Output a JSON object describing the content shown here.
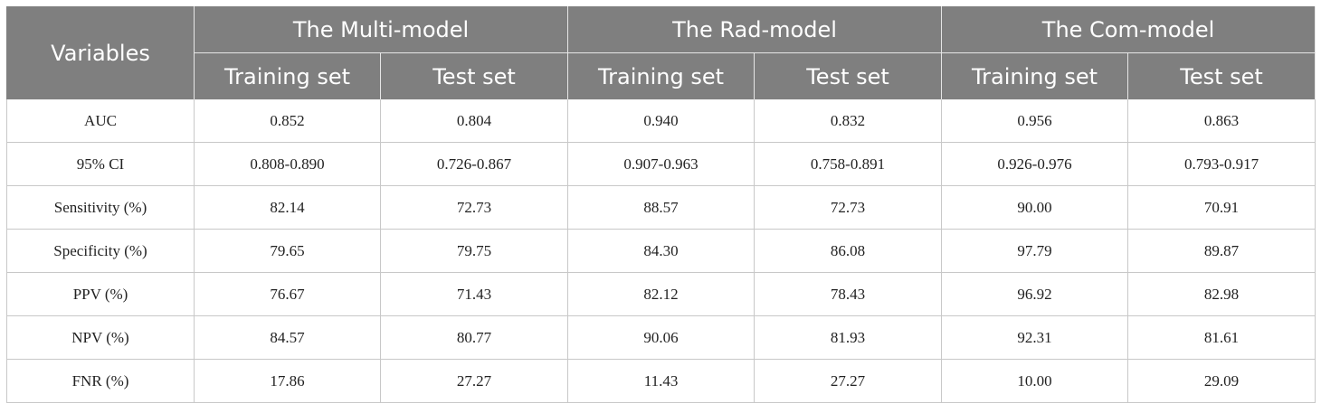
{
  "table": {
    "header": {
      "variables_label": "Variables",
      "groups": [
        {
          "label": "The Multi-model"
        },
        {
          "label": "The Rad-model"
        },
        {
          "label": "The Com-model"
        }
      ],
      "sub_columns": [
        "Training set",
        "Test set",
        "Training set",
        "Test set",
        "Training set",
        "Test set"
      ]
    },
    "rows": [
      {
        "variable": "AUC",
        "values": [
          "0.852",
          "0.804",
          "0.940",
          "0.832",
          "0.956",
          "0.863"
        ]
      },
      {
        "variable": "95% CI",
        "values": [
          "0.808-0.890",
          "0.726-0.867",
          "0.907-0.963",
          "0.758-0.891",
          "0.926-0.976",
          "0.793-0.917"
        ]
      },
      {
        "variable": "Sensitivity (%)",
        "values": [
          "82.14",
          "72.73",
          "88.57",
          "72.73",
          "90.00",
          "70.91"
        ]
      },
      {
        "variable": "Specificity (%)",
        "values": [
          "79.65",
          "79.75",
          "84.30",
          "86.08",
          "97.79",
          "89.87"
        ]
      },
      {
        "variable": "PPV (%)",
        "values": [
          "76.67",
          "71.43",
          "82.12",
          "78.43",
          "96.92",
          "82.98"
        ]
      },
      {
        "variable": "NPV (%)",
        "values": [
          "84.57",
          "80.77",
          "90.06",
          "81.93",
          "92.31",
          "81.61"
        ]
      },
      {
        "variable": "FNR (%)",
        "values": [
          "17.86",
          "27.27",
          "11.43",
          "27.27",
          "10.00",
          "29.09"
        ]
      }
    ]
  }
}
